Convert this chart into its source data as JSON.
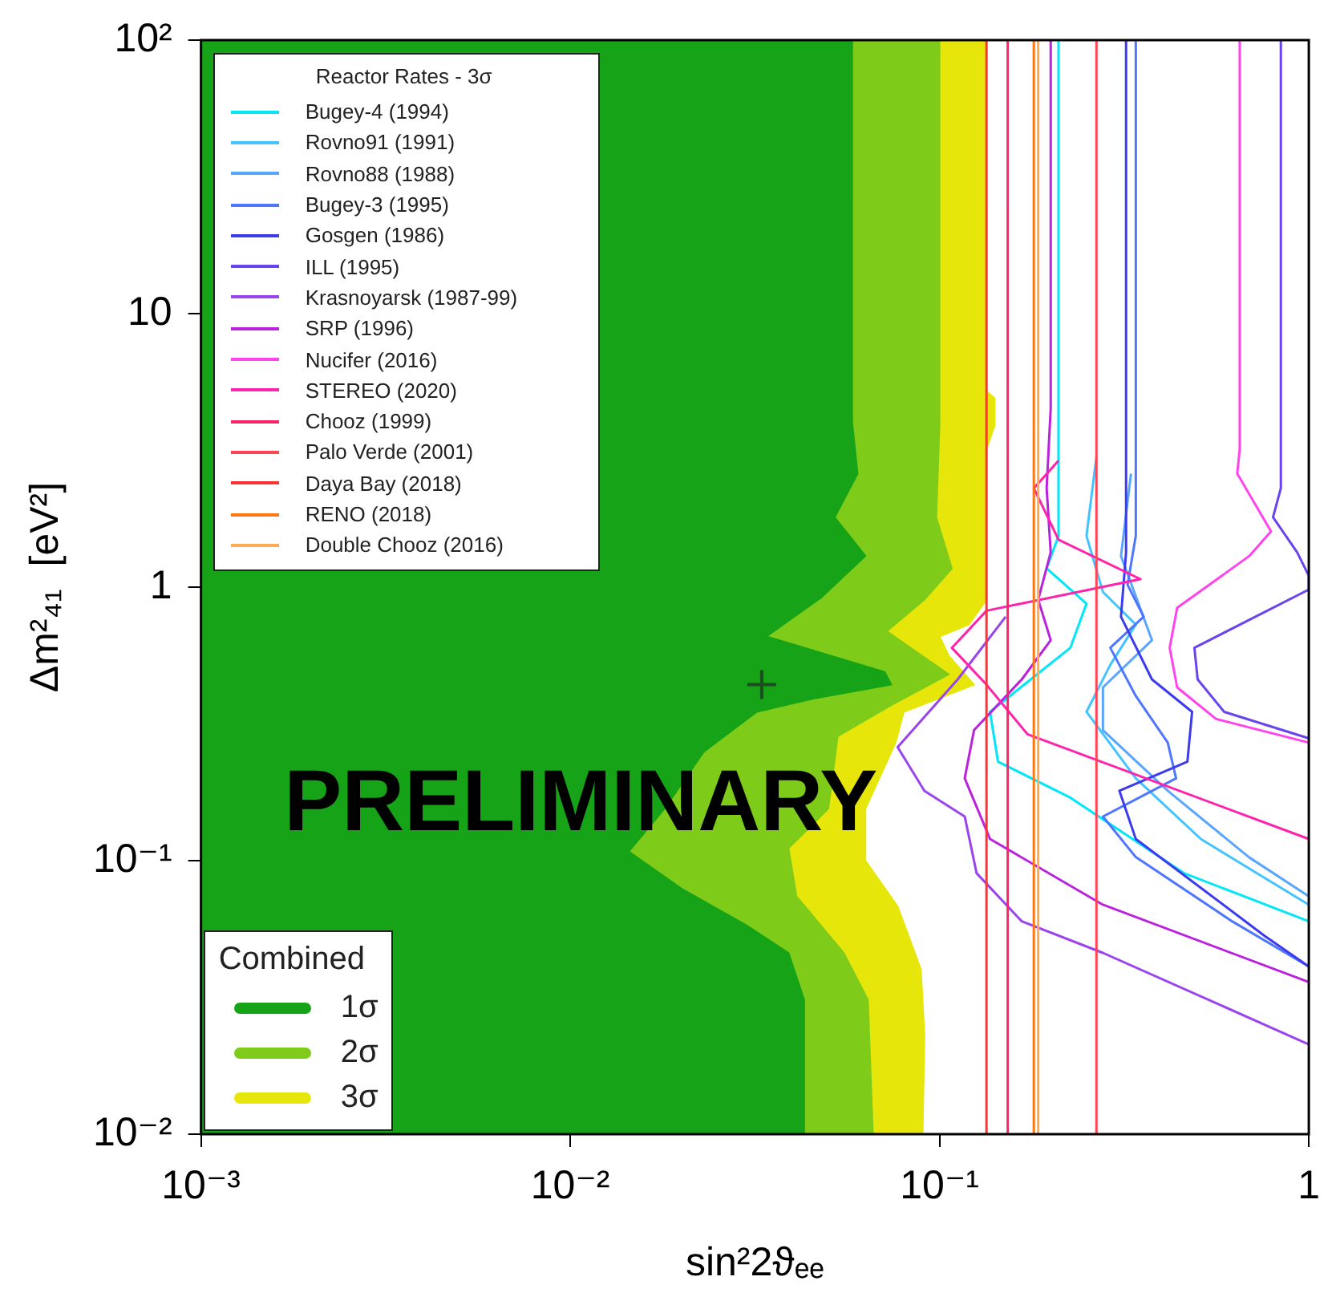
{
  "chart_data": {
    "type": "line",
    "xlabel": "sin²2ϑₑₑ",
    "ylabel": "Δm²₄₁  [eV²]",
    "log": "xy",
    "xlim": [
      0.001,
      1
    ],
    "ylim": [
      0.01,
      100
    ],
    "xticks": [
      {
        "value": 0.001,
        "label": "10⁻³"
      },
      {
        "value": 0.01,
        "label": "10⁻²"
      },
      {
        "value": 0.1,
        "label": "10⁻¹"
      },
      1
    ],
    "yticks": [
      {
        "value": 0.01,
        "label": "10⁻²"
      },
      {
        "value": 0.1,
        "label": "10⁻¹"
      },
      1,
      10,
      {
        "value": 100,
        "label": "10²"
      }
    ],
    "legend": "left",
    "legend_title": "Reactor Rates - 3σ",
    "marker": "none",
    "annotations": [
      "PRELIMINARY",
      "Combined"
    ],
    "series": [
      {
        "name": "1σ",
        "type": "area",
        "color": "#17a317",
        "x": [
          0.001,
          0.058,
          0.058,
          0.06,
          0.052,
          0.063,
          0.048,
          0.034,
          0.071,
          0.074,
          0.045,
          0.032,
          0.023,
          0.018,
          0.0144,
          0.02,
          0.03,
          0.039,
          0.043,
          0.043,
          0.001
        ],
        "values": [
          100,
          100,
          4.0,
          2.6,
          1.8,
          1.3,
          0.92,
          0.66,
          0.49,
          0.44,
          0.39,
          0.35,
          0.25,
          0.155,
          0.108,
          0.079,
          0.058,
          0.046,
          0.031,
          0.01,
          0.01
        ]
      },
      {
        "name": "2σ",
        "type": "area",
        "color": "#7ecb1a",
        "x": [
          0.001,
          0.1,
          0.1,
          0.098,
          0.108,
          0.091,
          0.072,
          0.106,
          0.074,
          0.053,
          0.05,
          0.039,
          0.041,
          0.055,
          0.064,
          0.066,
          0.001
        ],
        "values": [
          100,
          100,
          3.9,
          1.8,
          1.17,
          0.9,
          0.69,
          0.48,
          0.37,
          0.285,
          0.155,
          0.111,
          0.074,
          0.046,
          0.031,
          0.01,
          0.01
        ]
      },
      {
        "name": "3σ",
        "type": "area",
        "color": "#e6e60a",
        "x": [
          0.001,
          0.134,
          0.134,
          0.141,
          0.141,
          0.134,
          0.134,
          0.12,
          0.1,
          0.106,
          0.124,
          0.08,
          0.076,
          0.063,
          0.063,
          0.077,
          0.089,
          0.091,
          0.09,
          0.001
        ],
        "values": [
          100,
          100,
          5.2,
          4.9,
          3.9,
          3.2,
          0.9,
          0.73,
          0.66,
          0.56,
          0.44,
          0.35,
          0.27,
          0.155,
          0.1,
          0.068,
          0.04,
          0.023,
          0.01,
          0.01
        ]
      },
      {
        "name": "Bugey-4 (1994)",
        "color": "#00e8f8",
        "x": [
          0.21,
          0.21,
          0.195,
          0.25,
          0.226,
          0.137,
          0.144,
          0.226,
          0.459,
          1.0
        ],
        "values": [
          100,
          1.54,
          1.17,
          0.87,
          0.6,
          0.35,
          0.23,
          0.17,
          0.09,
          0.06
        ]
      },
      {
        "name": "Rovno91 (1991)",
        "color": "#44c4ff",
        "x": [
          0.266,
          0.25,
          0.277,
          0.34,
          0.29,
          0.25,
          0.34,
          0.51,
          1.0
        ],
        "values": [
          3.0,
          1.54,
          0.96,
          0.73,
          0.52,
          0.35,
          0.2,
          0.12,
          0.069
        ]
      },
      {
        "name": "Rovno88 (1988)",
        "color": "#5aa6ff",
        "x": [
          0.33,
          0.31,
          0.376,
          0.277,
          0.277,
          0.415,
          0.688,
          1.0
        ],
        "values": [
          2.6,
          1.3,
          0.64,
          0.43,
          0.3,
          0.18,
          0.103,
          0.074
        ]
      },
      {
        "name": "Bugey-3 (1995)",
        "color": "#4f76ff",
        "x": [
          0.34,
          0.34,
          0.323,
          0.357,
          0.29,
          0.34,
          0.415,
          0.437,
          0.277,
          0.34,
          0.62,
          1.0
        ],
        "values": [
          100,
          1.54,
          1.02,
          0.78,
          0.6,
          0.4,
          0.27,
          0.2,
          0.145,
          0.103,
          0.06,
          0.041
        ]
      },
      {
        "name": "Gosgen (1986)",
        "color": "#3c3cee",
        "x": [
          0.32,
          0.32,
          0.31,
          0.376,
          0.483,
          0.469,
          0.307,
          0.34,
          0.76,
          1.0
        ],
        "values": [
          100,
          1.34,
          0.78,
          0.46,
          0.35,
          0.23,
          0.18,
          0.12,
          0.053,
          0.041
        ]
      },
      {
        "name": "ILL (1995)",
        "color": "#6a44ee",
        "x": [
          0.84,
          0.84,
          0.8,
          0.93,
          1.0,
          1.0,
          0.49,
          0.5,
          0.59,
          1.0
        ],
        "values": [
          100,
          2.3,
          1.8,
          1.34,
          1.1,
          0.98,
          0.6,
          0.46,
          0.35,
          0.28
        ]
      },
      {
        "name": "Krasnoyarsk (1987-99)",
        "color": "#9944ee",
        "x": [
          0.151,
          0.112,
          0.077,
          0.091,
          0.117,
          0.126,
          0.167,
          0.277,
          1.0
        ],
        "values": [
          0.78,
          0.46,
          0.26,
          0.18,
          0.145,
          0.09,
          0.06,
          0.046,
          0.0213
        ]
      },
      {
        "name": "SRP (1996)",
        "color": "#bb22dd",
        "x": [
          0.2,
          0.2,
          0.195,
          0.2,
          0.185,
          0.2,
          0.167,
          0.124,
          0.117,
          0.137,
          0.277,
          1.0
        ],
        "values": [
          100,
          4.5,
          2.3,
          1.34,
          0.9,
          0.64,
          0.46,
          0.3,
          0.2,
          0.12,
          0.069,
          0.036
        ]
      },
      {
        "name": "Nucifer (2016)",
        "color": "#ff44ee",
        "x": [
          0.65,
          0.65,
          0.64,
          0.79,
          0.69,
          0.44,
          0.42,
          0.44,
          0.56,
          1.0
        ],
        "values": [
          100,
          3.2,
          2.6,
          1.6,
          1.3,
          0.84,
          0.6,
          0.43,
          0.33,
          0.27
        ]
      },
      {
        "name": "STEREO (2020)",
        "color": "#ff22aa",
        "x": [
          0.21,
          0.18,
          0.21,
          0.35,
          0.134,
          0.108,
          0.134,
          0.173,
          1.0
        ],
        "values": [
          2.9,
          2.3,
          1.49,
          1.07,
          0.82,
          0.6,
          0.44,
          0.29,
          0.12
        ]
      },
      {
        "name": "Chooz (1999)",
        "color": "#ff2266",
        "x": [
          0.153,
          0.153
        ],
        "values": [
          100,
          0.01
        ]
      },
      {
        "name": "Palo Verde (2001)",
        "color": "#ff4455",
        "x": [
          0.266,
          0.266
        ],
        "values": [
          100,
          0.01
        ]
      },
      {
        "name": "Daya Bay (2018)",
        "color": "#ff3333",
        "x": [
          0.134,
          0.134
        ],
        "values": [
          100,
          0.01
        ]
      },
      {
        "name": "RENO (2018)",
        "color": "#ff7711",
        "x": [
          0.18,
          0.18
        ],
        "values": [
          100,
          0.01
        ]
      },
      {
        "name": "Double Chooz (2016)",
        "color": "#ffaa55",
        "x": [
          0.185,
          0.185
        ],
        "values": [
          100,
          0.01
        ]
      },
      {
        "type": "scatter",
        "marker": "cross",
        "color": "#1d4d1d",
        "x": [
          0.033
        ],
        "values": [
          0.44
        ]
      }
    ]
  }
}
